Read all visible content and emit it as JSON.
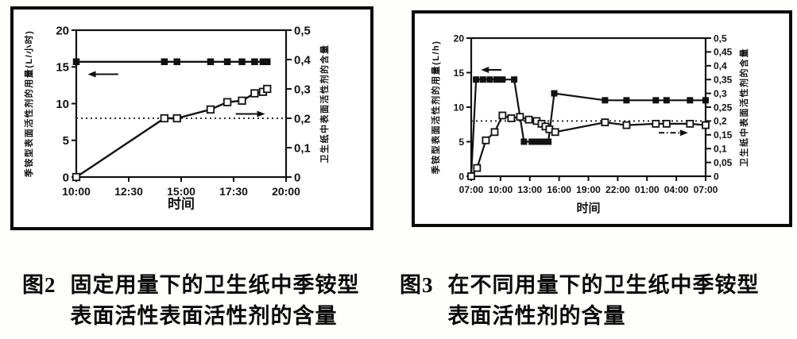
{
  "figures": [
    {
      "caption_label": "图2",
      "caption_line1": "固定用量下的卫生纸中季铵型",
      "caption_line2": "表面活性表面活性剂的含量"
    },
    {
      "caption_label": "图3",
      "caption_line1": "在不同用量下的卫生纸中季铵型",
      "caption_line2": "表面活性剂的含量"
    }
  ],
  "colors": {
    "ink": "#111111",
    "paper": "#ffffff"
  },
  "chart_data": [
    {
      "id": "fig2",
      "type": "line",
      "title": "固定用量下的卫生纸中季铵型表面活性表面活性剂的含量",
      "xlabel": "时间",
      "x_range": [
        10,
        20
      ],
      "x_ticks": [
        {
          "v": 10,
          "label": "10:00"
        },
        {
          "v": 12.5,
          "label": "12:30"
        },
        {
          "v": 15,
          "label": "15:00"
        },
        {
          "v": 17.5,
          "label": "17:30"
        },
        {
          "v": 20,
          "label": "20:00"
        }
      ],
      "left_axis": {
        "label": "季铵型表面活性剂的用量(L/小时)",
        "range": [
          0,
          20
        ],
        "ticks": [
          {
            "v": 0,
            "label": "0"
          },
          {
            "v": 5,
            "label": "5"
          },
          {
            "v": 10,
            "label": "10"
          },
          {
            "v": 15,
            "label": "15"
          },
          {
            "v": 20,
            "label": "20"
          }
        ]
      },
      "right_axis": {
        "label": "卫生纸中表面活性剂的含量",
        "range": [
          0,
          0.5
        ],
        "ticks": [
          {
            "v": 0,
            "label": "0"
          },
          {
            "v": 0.1,
            "label": "0,1"
          },
          {
            "v": 0.2,
            "label": "0,2"
          },
          {
            "v": 0.3,
            "label": "0,3"
          },
          {
            "v": 0.4,
            "label": "0,4"
          },
          {
            "v": 0.5,
            "label": "0,5"
          }
        ]
      },
      "dotted_line": {
        "axis": "left",
        "value": 8
      },
      "series": [
        {
          "name": "季铵型表面活性剂的用量",
          "axis": "left",
          "marker": "square-filled",
          "points": [
            [
              10,
              15.7
            ],
            [
              14.2,
              15.7
            ],
            [
              14.8,
              15.7
            ],
            [
              16.4,
              15.7
            ],
            [
              17.2,
              15.7
            ],
            [
              17.9,
              15.7
            ],
            [
              18.5,
              15.7
            ],
            [
              18.9,
              15.7
            ],
            [
              19.1,
              15.7
            ]
          ]
        },
        {
          "name": "卫生纸中表面活性剂的含量",
          "axis": "right",
          "marker": "square-open",
          "points": [
            [
              10,
              0
            ],
            [
              14.2,
              0.2
            ],
            [
              14.8,
              0.2
            ],
            [
              16.4,
              0.23
            ],
            [
              17.2,
              0.255
            ],
            [
              17.9,
              0.26
            ],
            [
              18.5,
              0.285
            ],
            [
              18.9,
              0.29
            ],
            [
              19.1,
              0.3
            ]
          ]
        }
      ],
      "arrows": [
        {
          "dir": "left",
          "x1": 10.55,
          "x2": 12.0,
          "y": 14.0,
          "style": "solid"
        },
        {
          "dir": "right",
          "x1": 17.6,
          "x2": 19.0,
          "y": 8.6,
          "style": "solid"
        }
      ]
    },
    {
      "id": "fig3",
      "type": "line",
      "title": "在不同用量下的卫生纸中季铵型表面活性剂的含量",
      "xlabel": "时间",
      "x_range": [
        7,
        31
      ],
      "x_ticks": [
        {
          "v": 7,
          "label": "07:00"
        },
        {
          "v": 10,
          "label": "10:00"
        },
        {
          "v": 13,
          "label": "13:00"
        },
        {
          "v": 16,
          "label": "16:00"
        },
        {
          "v": 19,
          "label": "19:00"
        },
        {
          "v": 22,
          "label": "22:00"
        },
        {
          "v": 25,
          "label": "01:00"
        },
        {
          "v": 28,
          "label": "04:00"
        },
        {
          "v": 31,
          "label": "07:00"
        }
      ],
      "left_axis": {
        "label": "季铵型表面活性剂的用量(L/h)",
        "range": [
          0,
          20
        ],
        "ticks": [
          {
            "v": 0,
            "label": "0"
          },
          {
            "v": 5,
            "label": "5"
          },
          {
            "v": 10,
            "label": "10"
          },
          {
            "v": 15,
            "label": "15"
          },
          {
            "v": 20,
            "label": "20"
          }
        ]
      },
      "right_axis": {
        "label": "卫生纸中表面活性剂的含量",
        "range": [
          0,
          0.5
        ],
        "ticks": [
          {
            "v": 0,
            "label": "0"
          },
          {
            "v": 0.05,
            "label": "0,05"
          },
          {
            "v": 0.1,
            "label": "0,1"
          },
          {
            "v": 0.15,
            "label": "0,15"
          },
          {
            "v": 0.2,
            "label": "0,2"
          },
          {
            "v": 0.25,
            "label": "0,25"
          },
          {
            "v": 0.3,
            "label": "0,3"
          },
          {
            "v": 0.35,
            "label": "0,35"
          },
          {
            "v": 0.4,
            "label": "0,4"
          },
          {
            "v": 0.45,
            "label": "0,45"
          },
          {
            "v": 0.5,
            "label": "0,5"
          }
        ]
      },
      "dotted_line": {
        "axis": "left",
        "value": 8
      },
      "series": [
        {
          "name": "季铵型表面活性剂的用量",
          "axis": "left",
          "marker": "square-filled",
          "points": [
            [
              7,
              0
            ],
            [
              7.5,
              14
            ],
            [
              8.2,
              14
            ],
            [
              8.9,
              14
            ],
            [
              9.6,
              14
            ],
            [
              10.2,
              14
            ],
            [
              11.4,
              14
            ],
            [
              12.4,
              5
            ],
            [
              13.2,
              5
            ],
            [
              13.6,
              5
            ],
            [
              14.0,
              5
            ],
            [
              14.4,
              5
            ],
            [
              14.9,
              5
            ],
            [
              15.5,
              12
            ],
            [
              20.7,
              11
            ],
            [
              22.9,
              11
            ],
            [
              25.9,
              11
            ],
            [
              27.0,
              11
            ],
            [
              29.4,
              11
            ],
            [
              31,
              11
            ]
          ]
        },
        {
          "name": "卫生纸中表面活性剂的含量",
          "axis": "right",
          "marker": "square-open",
          "points": [
            [
              7,
              0
            ],
            [
              7.6,
              0.03
            ],
            [
              8.5,
              0.13
            ],
            [
              9.4,
              0.16
            ],
            [
              10.2,
              0.22
            ],
            [
              11.1,
              0.21
            ],
            [
              12.0,
              0.215
            ],
            [
              12.9,
              0.205
            ],
            [
              13.7,
              0.2
            ],
            [
              14.2,
              0.19
            ],
            [
              14.6,
              0.18
            ],
            [
              15.0,
              0.17
            ],
            [
              15.6,
              0.16
            ],
            [
              20.7,
              0.195
            ],
            [
              22.9,
              0.185
            ],
            [
              25.9,
              0.19
            ],
            [
              27.0,
              0.19
            ],
            [
              29.4,
              0.19
            ],
            [
              31,
              0.185
            ]
          ]
        }
      ],
      "arrows": [
        {
          "dir": "left",
          "x1": 8.0,
          "x2": 10.1,
          "y": 15.4,
          "style": "solid"
        },
        {
          "dir": "right",
          "x1": 26.2,
          "x2": 29.2,
          "y": 6.3,
          "style": "dashdot"
        }
      ]
    }
  ]
}
